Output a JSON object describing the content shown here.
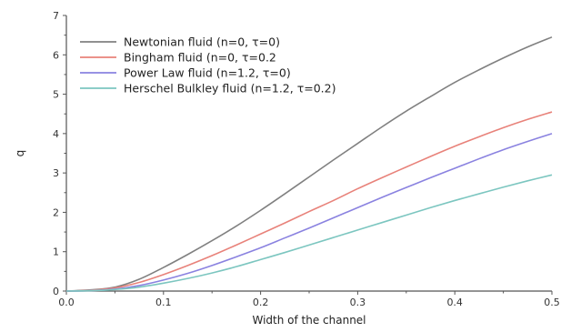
{
  "chart_data": {
    "type": "line",
    "title": "",
    "xlabel": "Width of the channel",
    "ylabel": "q",
    "xlim": [
      0.0,
      0.5
    ],
    "ylim": [
      0,
      7
    ],
    "xticks": [
      "0.0",
      "0.1",
      "0.2",
      "0.3",
      "0.4",
      "0.5"
    ],
    "yticks": [
      "0",
      "1",
      "2",
      "3",
      "4",
      "5",
      "6",
      "7"
    ],
    "grid": false,
    "legend_position": "top-left",
    "x": [
      0.0,
      0.025,
      0.05,
      0.075,
      0.1,
      0.125,
      0.15,
      0.175,
      0.2,
      0.225,
      0.25,
      0.275,
      0.3,
      0.325,
      0.35,
      0.375,
      0.4,
      0.425,
      0.45,
      0.475,
      0.5
    ],
    "series": [
      {
        "name": "Newtonian fluid (n=0, τ=0)",
        "color": "#808080",
        "values": [
          0.0,
          0.03,
          0.1,
          0.3,
          0.6,
          0.93,
          1.28,
          1.65,
          2.05,
          2.47,
          2.9,
          3.33,
          3.75,
          4.17,
          4.57,
          4.94,
          5.3,
          5.62,
          5.92,
          6.2,
          6.45
        ]
      },
      {
        "name": "Bingham fluid (n=0, τ=0.2",
        "color": "#e8827a",
        "values": [
          0.0,
          0.02,
          0.08,
          0.22,
          0.42,
          0.65,
          0.9,
          1.17,
          1.45,
          1.73,
          2.02,
          2.3,
          2.6,
          2.88,
          3.15,
          3.42,
          3.68,
          3.92,
          4.15,
          4.36,
          4.55
        ]
      },
      {
        "name": "Power Law fluid (n=1.2, τ=0)",
        "color": "#8a82e0",
        "values": [
          0.0,
          0.01,
          0.05,
          0.14,
          0.28,
          0.45,
          0.65,
          0.87,
          1.1,
          1.35,
          1.6,
          1.86,
          2.12,
          2.38,
          2.63,
          2.88,
          3.12,
          3.36,
          3.59,
          3.8,
          4.0
        ]
      },
      {
        "name": "Herschel Bulkley fluid (n=1.2, τ=0.2)",
        "color": "#7cc6c0",
        "values": [
          0.0,
          0.01,
          0.04,
          0.1,
          0.2,
          0.32,
          0.46,
          0.62,
          0.8,
          0.98,
          1.17,
          1.36,
          1.55,
          1.74,
          1.93,
          2.12,
          2.3,
          2.47,
          2.64,
          2.8,
          2.95
        ]
      }
    ]
  }
}
